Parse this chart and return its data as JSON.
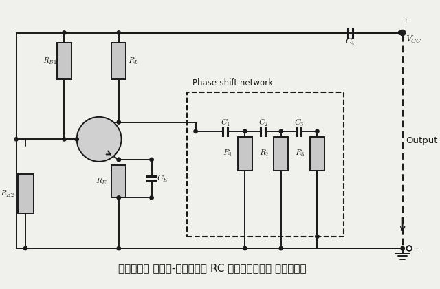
{
  "title": "चित्र फेज-शिफ्ट RC दोलित्र परिपथ",
  "bg_color": "#f0f0ec",
  "line_color": "#1a1a1a",
  "component_fill": "#c8c8c8",
  "vcc_label": "$V_{CC}$",
  "output_label": "Output",
  "phase_network_label": "Phase-shift network",
  "labels": {
    "RB1": "$R_{B1}$",
    "RL": "$R_L$",
    "RB2": "$R_{B2}$",
    "RE": "$R_E$",
    "CE": "$C_E$",
    "C1": "$C_1$",
    "C2": "$C_2$",
    "C3": "$C_3$",
    "C4": "$C_4$",
    "R1": "$R_1$",
    "R2": "$R_2$",
    "R3": "$R_3$"
  }
}
